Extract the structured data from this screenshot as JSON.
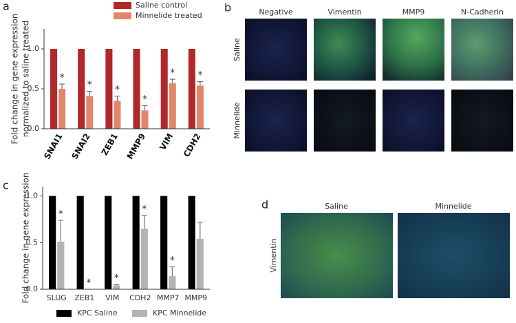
{
  "figure": {
    "panel_labels": [
      "a",
      "b",
      "c",
      "d"
    ],
    "panel_b": {
      "columns": [
        "Negative",
        "Vimentin",
        "MMP9",
        "N-Cadherin"
      ],
      "rows": [
        "Saline",
        "Minnelide"
      ]
    },
    "panel_d": {
      "columns": [
        "Saline",
        "Minnelide"
      ],
      "rows": [
        "Vimentin"
      ]
    }
  },
  "chart_data": [
    {
      "type": "bar",
      "ylabel": [
        "Fold change in gene expression",
        "normalized to saline treated"
      ],
      "categories": [
        "SNAI1",
        "SNAI2",
        "ZEB1",
        "MMP9",
        "VIM",
        "CDH2"
      ],
      "series": [
        {
          "name": "Saline control",
          "color": "#b0282a",
          "values": [
            1,
            1,
            1,
            1,
            1,
            1
          ]
        },
        {
          "name": "Minnelide treated",
          "color": "#e0876b",
          "values": [
            0.5,
            0.41,
            0.35,
            0.23,
            0.57,
            0.54
          ],
          "errors": [
            0.06,
            0.06,
            0.06,
            0.06,
            0.05,
            0.05
          ]
        }
      ],
      "annotations": [
        "*",
        "*",
        "*",
        "*",
        "*",
        "*"
      ],
      "ylim": [
        0,
        1.25
      ],
      "yticks": [
        {
          "value": 0,
          "label": "0.0"
        },
        {
          "value": 0.5,
          "label": "0.5"
        },
        {
          "value": 1,
          "label": "1.0"
        }
      ],
      "legend": "upper right"
    },
    {
      "type": "bar",
      "ylabel": [
        "Fold change in gene expression"
      ],
      "categories": [
        "SLUG",
        "ZEB1",
        "VIM",
        "CDH2",
        "MMP7",
        "MMP9"
      ],
      "series": [
        {
          "name": "KPC Saline",
          "color": "#000000",
          "values": [
            1,
            1,
            1,
            1,
            1,
            1
          ]
        },
        {
          "name": "KPC Minnelide",
          "color": "#b3b3b3",
          "values": [
            0.51,
            0,
            0.04,
            0.65,
            0.14,
            0.54
          ],
          "errors": [
            0.23,
            0,
            0.01,
            0.14,
            0.1,
            0.18
          ]
        }
      ],
      "annotations": [
        "*",
        "*",
        "*",
        "*",
        "*",
        null
      ],
      "ylim": [
        0,
        1.1
      ],
      "yticks": [
        {
          "value": 0,
          "label": "0.0"
        },
        {
          "value": 0.5,
          "label": "0.5"
        },
        {
          "value": 1,
          "label": "1.0"
        }
      ],
      "legend": "bottom"
    }
  ]
}
